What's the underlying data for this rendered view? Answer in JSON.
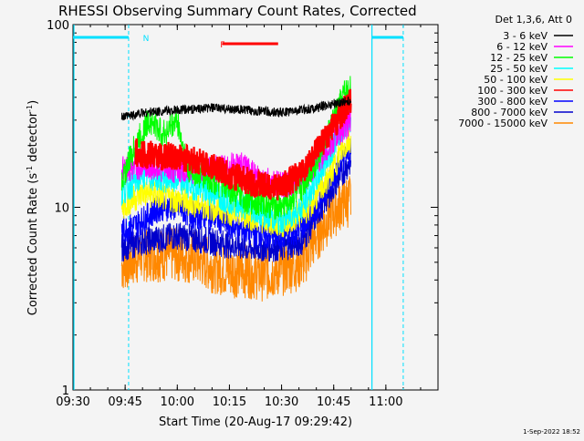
{
  "chart_data": {
    "type": "line",
    "title": "RHESSI Observing Summary Count Rates, Corrected",
    "xlabel": "Start Time (20-Aug-17 09:29:42)",
    "ylabel_main": "Corrected Count Rate (s",
    "ylabel_sup1": "-1",
    "ylabel_mid": " detector",
    "ylabel_sup2": "-1",
    "ylabel_end": ")",
    "yscale": "log",
    "ylim": [
      1,
      100
    ],
    "xlim": [
      "09:30",
      "11:15"
    ],
    "x_ticks": [
      "09:30",
      "09:45",
      "10:00",
      "10:15",
      "10:30",
      "10:45",
      "11:00"
    ],
    "y_ticks": [
      "1",
      "10",
      "100"
    ],
    "legend_header": "Det 1,3,6, Att 0",
    "legend_position": "top-right",
    "timestamp": "1-Sep-2022 18:52",
    "night_label": "N",
    "flare_label": "F",
    "night_intervals": [
      [
        "09:30",
        "09:46"
      ],
      [
        "10:56",
        "11:05"
      ]
    ],
    "saa_boundaries": [
      "09:46",
      "10:56",
      "11:05"
    ],
    "flare_interval": [
      "10:13",
      "10:29"
    ],
    "data_start": "09:43",
    "data_end": "10:50",
    "series": [
      {
        "name": "3 - 6 keV",
        "color": "#000000",
        "values": [
          [
            "09:44",
            31
          ],
          [
            "09:50",
            33
          ],
          [
            "10:00",
            34
          ],
          [
            "10:10",
            35
          ],
          [
            "10:20",
            34
          ],
          [
            "10:30",
            33
          ],
          [
            "10:40",
            35
          ],
          [
            "10:45",
            37
          ],
          [
            "10:48",
            38
          ],
          [
            "10:50",
            38
          ]
        ]
      },
      {
        "name": "6 - 12 keV",
        "color": "#ff00ff",
        "values": [
          [
            "09:44",
            16
          ],
          [
            "09:50",
            17
          ],
          [
            "10:00",
            16
          ],
          [
            "10:10",
            16
          ],
          [
            "10:18",
            17
          ],
          [
            "10:25",
            14
          ],
          [
            "10:30",
            13
          ],
          [
            "10:37",
            15
          ],
          [
            "10:44",
            22
          ],
          [
            "10:47",
            26
          ],
          [
            "10:50",
            30
          ]
        ]
      },
      {
        "name": "12 - 25 keV",
        "color": "#00ff00",
        "values": [
          [
            "09:44",
            14
          ],
          [
            "09:48",
            22
          ],
          [
            "09:52",
            30
          ],
          [
            "09:56",
            25
          ],
          [
            "10:00",
            30
          ],
          [
            "10:03",
            16
          ],
          [
            "10:10",
            14
          ],
          [
            "10:20",
            11
          ],
          [
            "10:30",
            10
          ],
          [
            "10:35",
            12
          ],
          [
            "10:40",
            18
          ],
          [
            "10:45",
            30
          ],
          [
            "10:48",
            42
          ],
          [
            "10:50",
            45
          ]
        ]
      },
      {
        "name": "25 - 50 keV",
        "color": "#00ffff",
        "values": [
          [
            "09:44",
            12
          ],
          [
            "09:50",
            15
          ],
          [
            "10:00",
            14
          ],
          [
            "10:10",
            12
          ],
          [
            "10:20",
            10
          ],
          [
            "10:30",
            8.5
          ],
          [
            "10:36",
            10
          ],
          [
            "10:40",
            14
          ],
          [
            "10:45",
            22
          ],
          [
            "10:48",
            28
          ],
          [
            "10:50",
            31
          ]
        ]
      },
      {
        "name": "50 - 100 keV",
        "color": "#ffff00",
        "values": [
          [
            "09:44",
            10
          ],
          [
            "09:50",
            12
          ],
          [
            "10:00",
            11
          ],
          [
            "10:10",
            10
          ],
          [
            "10:20",
            9
          ],
          [
            "10:30",
            8
          ],
          [
            "10:38",
            10
          ],
          [
            "10:44",
            15
          ],
          [
            "10:47",
            20
          ],
          [
            "10:50",
            24
          ]
        ]
      },
      {
        "name": "100 - 300 keV",
        "color": "#ff0000",
        "values": [
          [
            "09:48",
            20
          ],
          [
            "09:55",
            19
          ],
          [
            "10:00",
            19
          ],
          [
            "10:05",
            18
          ],
          [
            "10:10",
            17
          ],
          [
            "10:15",
            15
          ],
          [
            "10:20",
            14
          ],
          [
            "10:25",
            13
          ],
          [
            "10:30",
            13
          ],
          [
            "10:35",
            15
          ],
          [
            "10:40",
            20
          ],
          [
            "10:45",
            28
          ],
          [
            "10:48",
            34
          ],
          [
            "10:50",
            38
          ]
        ]
      },
      {
        "name": "300 - 800 keV",
        "color": "#0000ff",
        "values": [
          [
            "09:44",
            7.5
          ],
          [
            "09:48",
            8
          ],
          [
            "09:55",
            10
          ],
          [
            "10:00",
            10
          ],
          [
            "10:05",
            9
          ],
          [
            "10:10",
            9
          ],
          [
            "10:15",
            8
          ],
          [
            "10:20",
            7.5
          ],
          [
            "10:25",
            7
          ],
          [
            "10:30",
            7
          ],
          [
            "10:35",
            7.5
          ],
          [
            "10:40",
            10
          ],
          [
            "10:45",
            15
          ],
          [
            "10:48",
            19
          ],
          [
            "10:50",
            20
          ]
        ]
      },
      {
        "name": "800 - 7000 keV",
        "color": "#0000cc",
        "values": [
          [
            "09:44",
            6
          ],
          [
            "09:50",
            6.5
          ],
          [
            "10:00",
            7
          ],
          [
            "10:10",
            6.5
          ],
          [
            "10:20",
            6
          ],
          [
            "10:30",
            6
          ],
          [
            "10:36",
            6.5
          ],
          [
            "10:40",
            9
          ],
          [
            "10:45",
            13
          ],
          [
            "10:48",
            16
          ],
          [
            "10:50",
            18
          ]
        ]
      },
      {
        "name": "7000 - 15000 keV",
        "color": "#ff8800",
        "values": [
          [
            "09:44",
            4.8
          ],
          [
            "09:50",
            5.5
          ],
          [
            "10:00",
            5.5
          ],
          [
            "10:05",
            5.3
          ],
          [
            "10:10",
            4.8
          ],
          [
            "10:15",
            4.5
          ],
          [
            "10:20",
            4.5
          ],
          [
            "10:25",
            4.3
          ],
          [
            "10:30",
            4.6
          ],
          [
            "10:36",
            5
          ],
          [
            "10:40",
            7
          ],
          [
            "10:44",
            9
          ],
          [
            "10:47",
            10.5
          ],
          [
            "10:50",
            11
          ]
        ]
      }
    ]
  }
}
